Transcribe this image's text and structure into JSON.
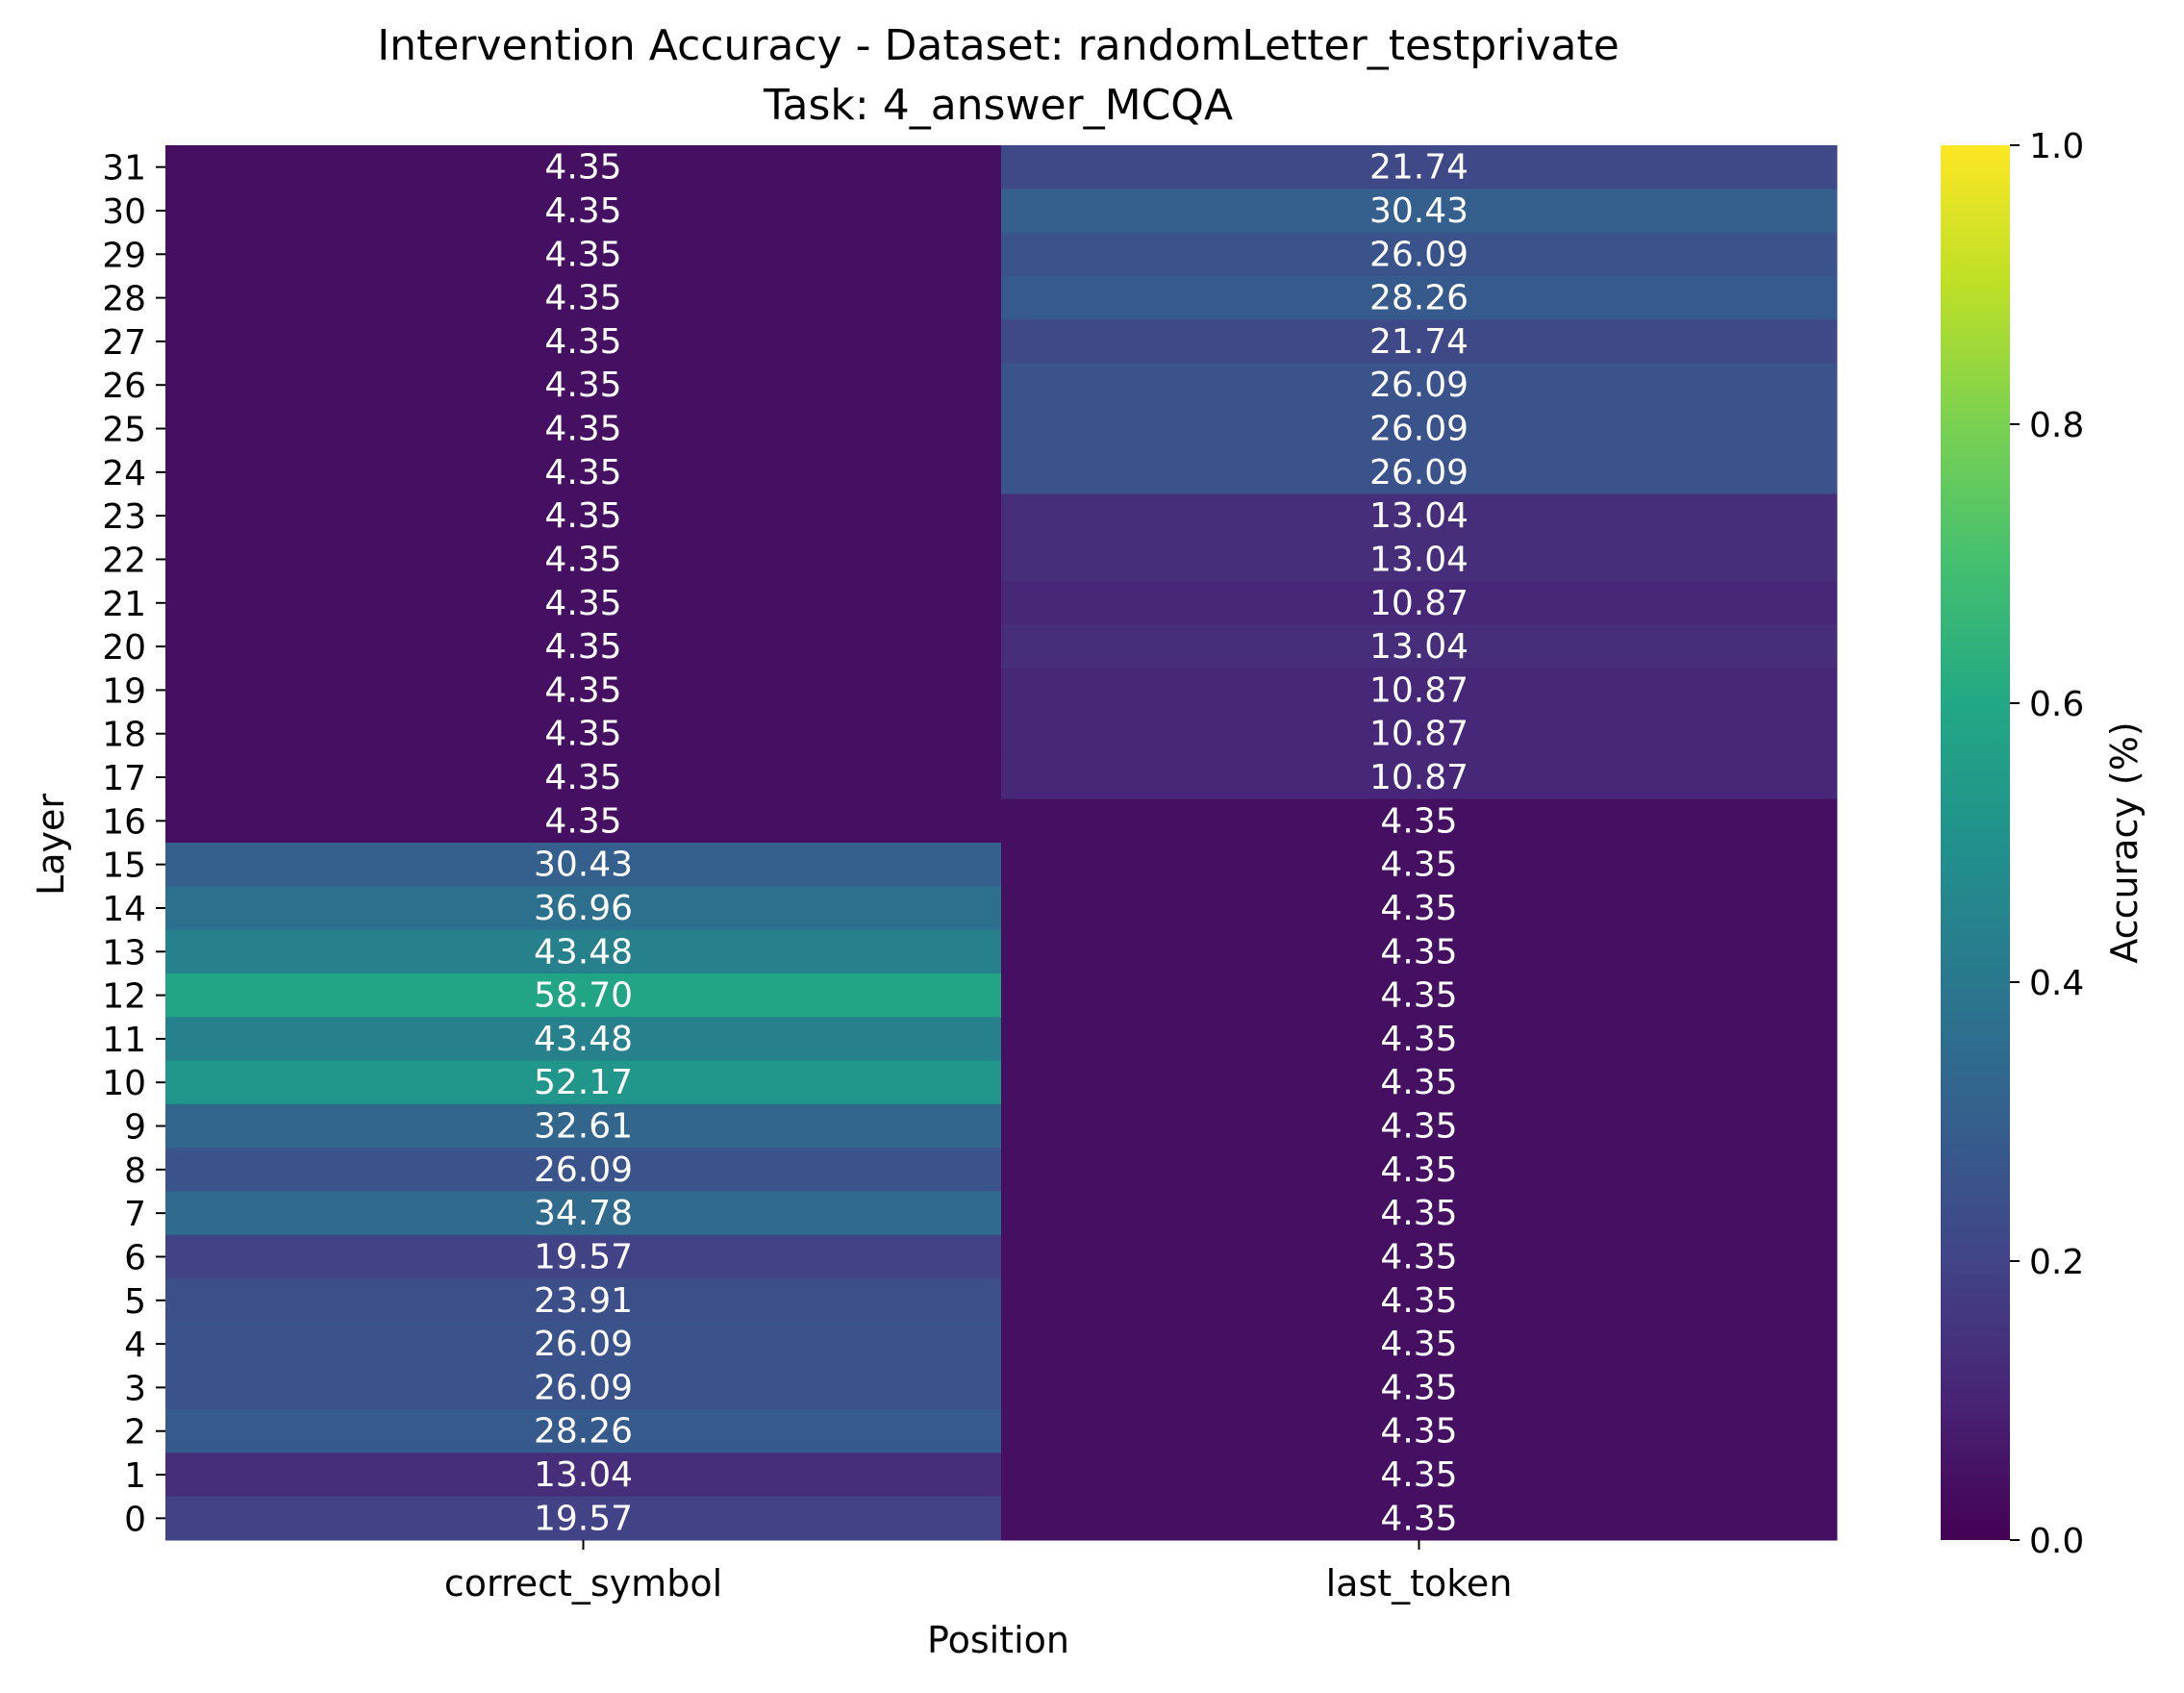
{
  "chart_data": {
    "type": "heatmap",
    "title": "Intervention Accuracy - Dataset: randomLetter_testprivate",
    "subtitle": "Task: 4_answer_MCQA",
    "xlabel": "Position",
    "ylabel": "Layer",
    "columns": [
      "correct_symbol",
      "last_token"
    ],
    "rows": [
      "31",
      "30",
      "29",
      "28",
      "27",
      "26",
      "25",
      "24",
      "23",
      "22",
      "21",
      "20",
      "19",
      "18",
      "17",
      "16",
      "15",
      "14",
      "13",
      "12",
      "11",
      "10",
      "9",
      "8",
      "7",
      "6",
      "5",
      "4",
      "3",
      "2",
      "1",
      "0"
    ],
    "values": [
      [
        "4.35",
        "21.74"
      ],
      [
        "4.35",
        "30.43"
      ],
      [
        "4.35",
        "26.09"
      ],
      [
        "4.35",
        "28.26"
      ],
      [
        "4.35",
        "21.74"
      ],
      [
        "4.35",
        "26.09"
      ],
      [
        "4.35",
        "26.09"
      ],
      [
        "4.35",
        "26.09"
      ],
      [
        "4.35",
        "13.04"
      ],
      [
        "4.35",
        "13.04"
      ],
      [
        "4.35",
        "10.87"
      ],
      [
        "4.35",
        "13.04"
      ],
      [
        "4.35",
        "10.87"
      ],
      [
        "4.35",
        "10.87"
      ],
      [
        "4.35",
        "10.87"
      ],
      [
        "4.35",
        "4.35"
      ],
      [
        "30.43",
        "4.35"
      ],
      [
        "36.96",
        "4.35"
      ],
      [
        "43.48",
        "4.35"
      ],
      [
        "58.70",
        "4.35"
      ],
      [
        "43.48",
        "4.35"
      ],
      [
        "52.17",
        "4.35"
      ],
      [
        "32.61",
        "4.35"
      ],
      [
        "26.09",
        "4.35"
      ],
      [
        "34.78",
        "4.35"
      ],
      [
        "19.57",
        "4.35"
      ],
      [
        "23.91",
        "4.35"
      ],
      [
        "26.09",
        "4.35"
      ],
      [
        "26.09",
        "4.35"
      ],
      [
        "28.26",
        "4.35"
      ],
      [
        "13.04",
        "4.35"
      ],
      [
        "19.57",
        "4.35"
      ]
    ],
    "colorbar": {
      "label": "Accuracy (%)",
      "range": [
        0,
        1
      ],
      "ticks": [
        "0.0",
        "0.2",
        "0.4",
        "0.6",
        "0.8",
        "1.0"
      ],
      "colormap": "viridis"
    }
  }
}
